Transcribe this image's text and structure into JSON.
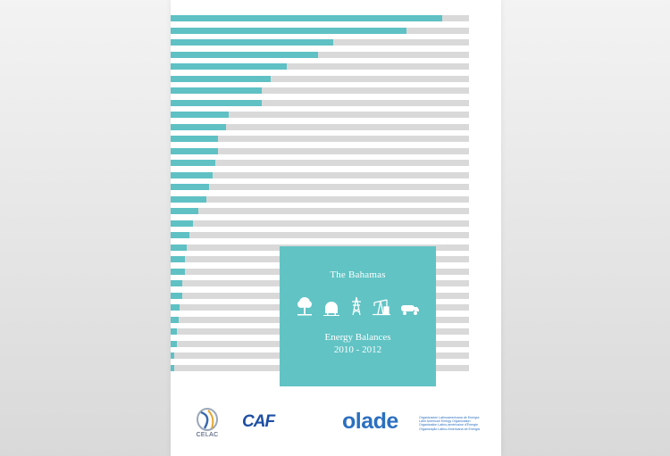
{
  "cover": {
    "country": "The Bahamas",
    "report_title": "Energy Balances",
    "years": "2010 - 2012",
    "colors": {
      "accent": "#61c3c4",
      "bar_track": "#d9d9d9",
      "bar_fill": "#5fc1c4"
    },
    "icons": [
      "tree-icon",
      "biogas-tank-icon",
      "power-tower-icon",
      "oil-pump-icon",
      "tanker-truck-icon"
    ]
  },
  "bars": [
    0.91,
    0.79,
    0.545,
    0.495,
    0.39,
    0.335,
    0.305,
    0.305,
    0.195,
    0.185,
    0.16,
    0.158,
    0.15,
    0.142,
    0.13,
    0.12,
    0.093,
    0.075,
    0.063,
    0.055,
    0.048,
    0.048,
    0.04,
    0.04,
    0.03,
    0.028,
    0.02,
    0.02,
    0.012,
    0.012
  ],
  "logos": {
    "celac": "CELAC",
    "caf": "CAF",
    "olade": "olade",
    "olade_sub": [
      "Organización Latinoamericana de Energía",
      "Latin American Energy Organization",
      "Organisation Latino-américaine d'Énergie",
      "Organização Latino-Americana de Energia"
    ]
  }
}
